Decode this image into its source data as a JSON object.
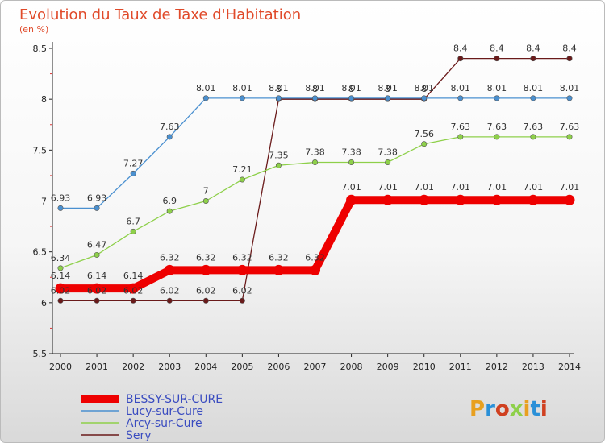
{
  "chart_data": {
    "type": "line",
    "title": "Evolution du Taux de Taxe d'Habitation",
    "subtitle": "(en %)",
    "xlabel": "",
    "ylabel": "",
    "x": [
      "2000",
      "2001",
      "2002",
      "2003",
      "2004",
      "2005",
      "2006",
      "2007",
      "2008",
      "2009",
      "2010",
      "2011",
      "2012",
      "2013",
      "2014"
    ],
    "ylim": [
      5.5,
      8.5
    ],
    "yticks": [
      5.5,
      6,
      6.5,
      7,
      7.5,
      8,
      8.5
    ],
    "ytick_labels": [
      "5.5",
      "6",
      "6.5",
      "7",
      "7.5",
      "8",
      "8.5"
    ],
    "grid": false,
    "legend_position": "bottom-left",
    "series": [
      {
        "name": "BESSY-SUR-CURE",
        "color": "#ee0000",
        "values": [
          6.14,
          6.14,
          6.14,
          6.32,
          6.32,
          6.32,
          6.32,
          6.32,
          7.01,
          7.01,
          7.01,
          7.01,
          7.01,
          7.01,
          7.01
        ],
        "labels": [
          "6.14",
          "6.14",
          "6.14",
          "6.32",
          "6.32",
          "6.32",
          "6.32",
          "6.32",
          "7.01",
          "7.01",
          "7.01",
          "7.01",
          "7.01",
          "7.01",
          "7.01"
        ]
      },
      {
        "name": "Lucy-sur-Cure",
        "color": "#4a90d0",
        "values": [
          6.93,
          6.93,
          7.27,
          7.63,
          8.01,
          8.01,
          8.01,
          8.01,
          8.01,
          8.01,
          8.01,
          8.01,
          8.01,
          8.01,
          8.01
        ],
        "labels": [
          "6.93",
          "6.93",
          "7.27",
          "7.63",
          "8.01",
          "8.01",
          "8.01",
          "8.01",
          "8.01",
          "8.01",
          "8.01",
          "8.01",
          "8.01",
          "8.01",
          "8.01"
        ]
      },
      {
        "name": "Arcy-sur-Cure",
        "color": "#8ed04a",
        "values": [
          6.34,
          6.47,
          6.7,
          6.9,
          7,
          7.21,
          7.35,
          7.38,
          7.38,
          7.38,
          7.56,
          7.63,
          7.63,
          7.63,
          7.63
        ],
        "labels": [
          "6.34",
          "6.47",
          "6.7",
          "6.9",
          "7",
          "7.21",
          "7.35",
          "7.38",
          "7.38",
          "7.38",
          "7.56",
          "7.63",
          "7.63",
          "7.63",
          "7.63"
        ]
      },
      {
        "name": "Sery",
        "color": "#6a1a1a",
        "values": [
          6.02,
          6.02,
          6.02,
          6.02,
          6.02,
          6.02,
          8,
          8,
          8,
          8,
          8,
          8.4,
          8.4,
          8.4,
          8.4
        ],
        "labels": [
          "6.02",
          "6.02",
          "6.02",
          "6.02",
          "6.02",
          "6.02",
          "8",
          "8",
          "8",
          "8",
          "8",
          "8.4",
          "8.4",
          "8.4",
          "8.4"
        ]
      }
    ]
  },
  "logo": {
    "text": "Proxiti",
    "colors": [
      "#e8a020",
      "#2a90d8",
      "#d04020",
      "#8ed04a"
    ]
  }
}
